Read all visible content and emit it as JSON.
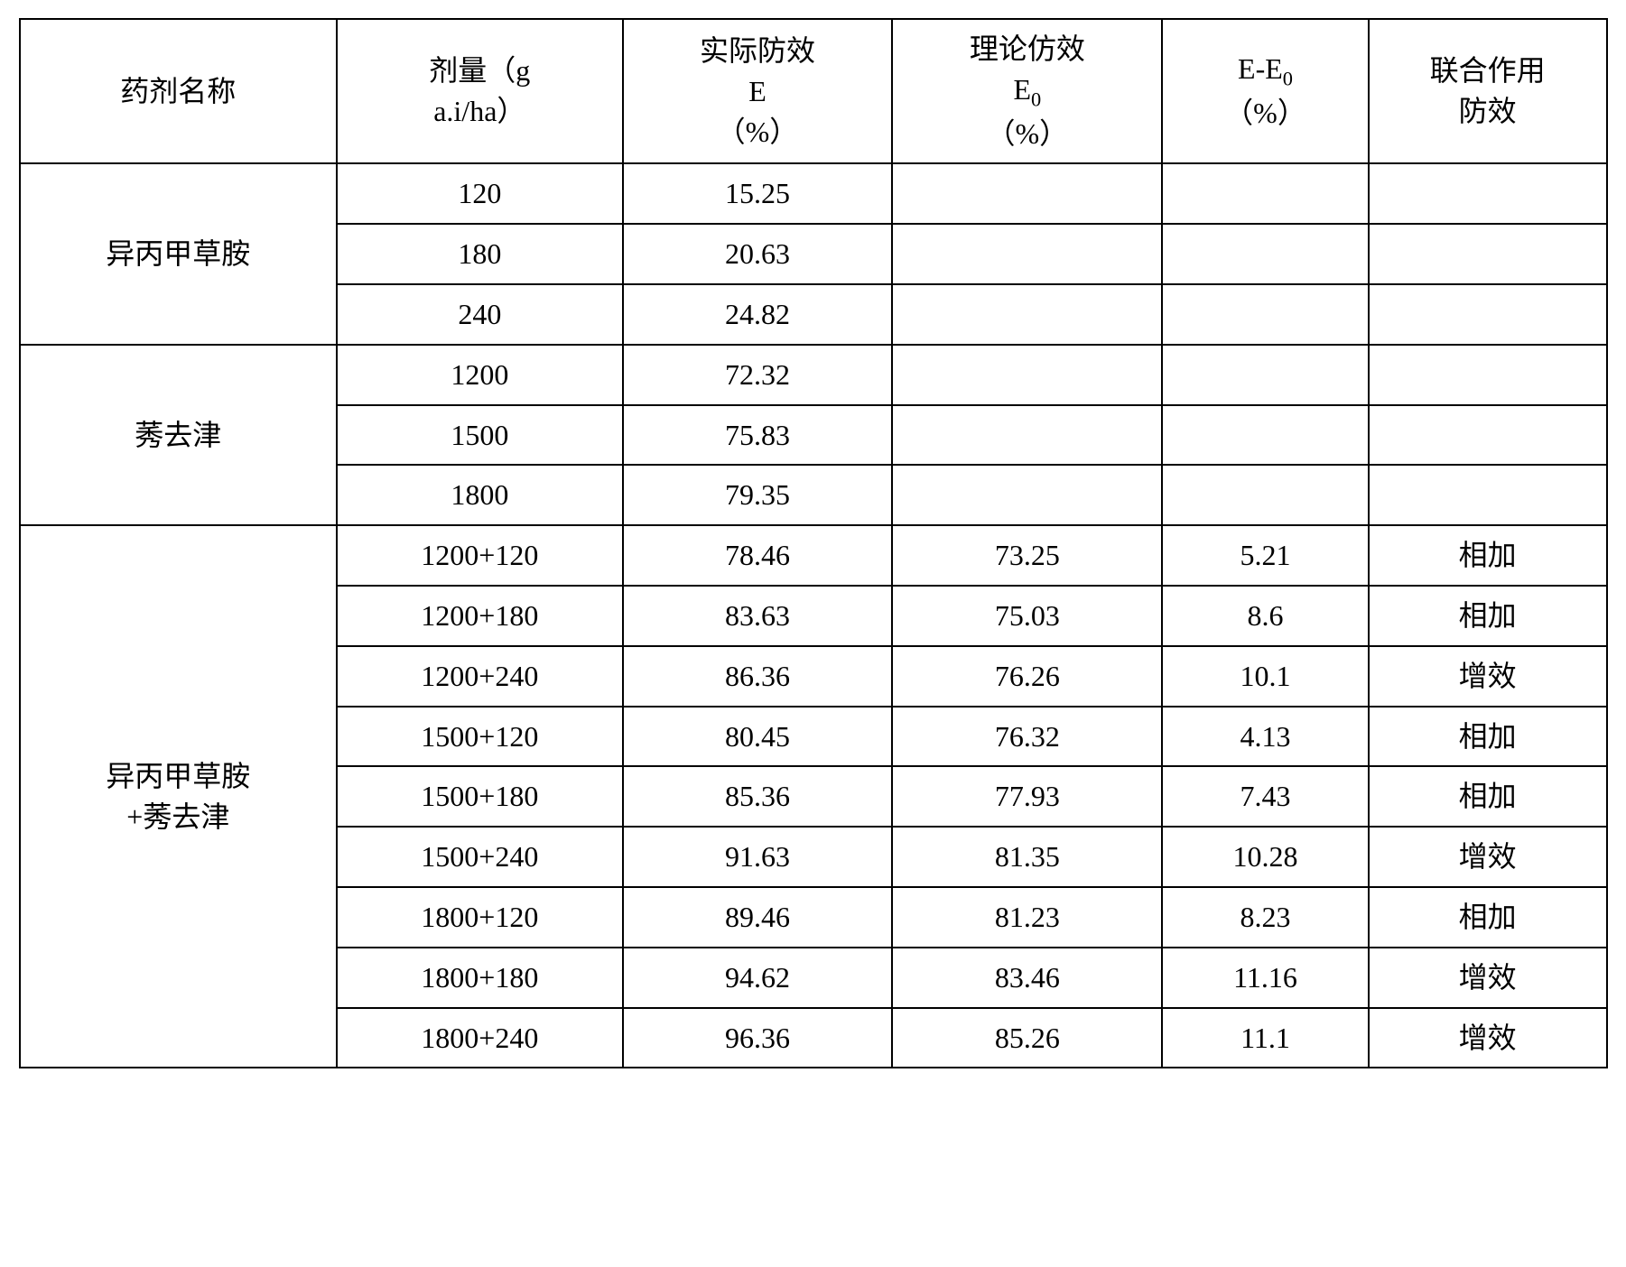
{
  "headers": {
    "name": "药剂名称",
    "dose_line1": "剂量（g",
    "dose_line2": "a.i/ha）",
    "actual_e_line1": "实际防效",
    "actual_e_line2": "E",
    "actual_e_line3": "（%）",
    "theory_e0_line1": "理论仿效",
    "theory_e0_line2_prefix": "E",
    "theory_e0_line2_sub": "0",
    "theory_e0_line3": "（%）",
    "diff_line1_prefix": "E-E",
    "diff_line1_sub": "0",
    "diff_line2": "（%）",
    "combo_line1": "联合作用",
    "combo_line2": "防效"
  },
  "group1": {
    "name": "异丙甲草胺",
    "rows": [
      {
        "dose": "120",
        "e": "15.25",
        "e0": "",
        "diff": "",
        "effect": ""
      },
      {
        "dose": "180",
        "e": "20.63",
        "e0": "",
        "diff": "",
        "effect": ""
      },
      {
        "dose": "240",
        "e": "24.82",
        "e0": "",
        "diff": "",
        "effect": ""
      }
    ]
  },
  "group2": {
    "name": "莠去津",
    "rows": [
      {
        "dose": "1200",
        "e": "72.32",
        "e0": "",
        "diff": "",
        "effect": ""
      },
      {
        "dose": "1500",
        "e": "75.83",
        "e0": "",
        "diff": "",
        "effect": ""
      },
      {
        "dose": "1800",
        "e": "79.35",
        "e0": "",
        "diff": "",
        "effect": ""
      }
    ]
  },
  "group3": {
    "name_line1": "异丙甲草胺",
    "name_line2": "+莠去津",
    "rows": [
      {
        "dose": "1200+120",
        "e": "78.46",
        "e0": "73.25",
        "diff": "5.21",
        "effect": "相加"
      },
      {
        "dose": "1200+180",
        "e": "83.63",
        "e0": "75.03",
        "diff": "8.6",
        "effect": "相加"
      },
      {
        "dose": "1200+240",
        "e": "86.36",
        "e0": "76.26",
        "diff": "10.1",
        "effect": "增效"
      },
      {
        "dose": "1500+120",
        "e": "80.45",
        "e0": "76.32",
        "diff": "4.13",
        "effect": "相加"
      },
      {
        "dose": "1500+180",
        "e": "85.36",
        "e0": "77.93",
        "diff": "7.43",
        "effect": "相加"
      },
      {
        "dose": "1500+240",
        "e": "91.63",
        "e0": "81.35",
        "diff": "10.28",
        "effect": "增效"
      },
      {
        "dose": "1800+120",
        "e": "89.46",
        "e0": "81.23",
        "diff": "8.23",
        "effect": "相加"
      },
      {
        "dose": "1800+180",
        "e": "94.62",
        "e0": "83.46",
        "diff": "11.16",
        "effect": "增效"
      },
      {
        "dose": "1800+240",
        "e": "96.36",
        "e0": "85.26",
        "diff": "11.1",
        "effect": "增效"
      }
    ]
  }
}
